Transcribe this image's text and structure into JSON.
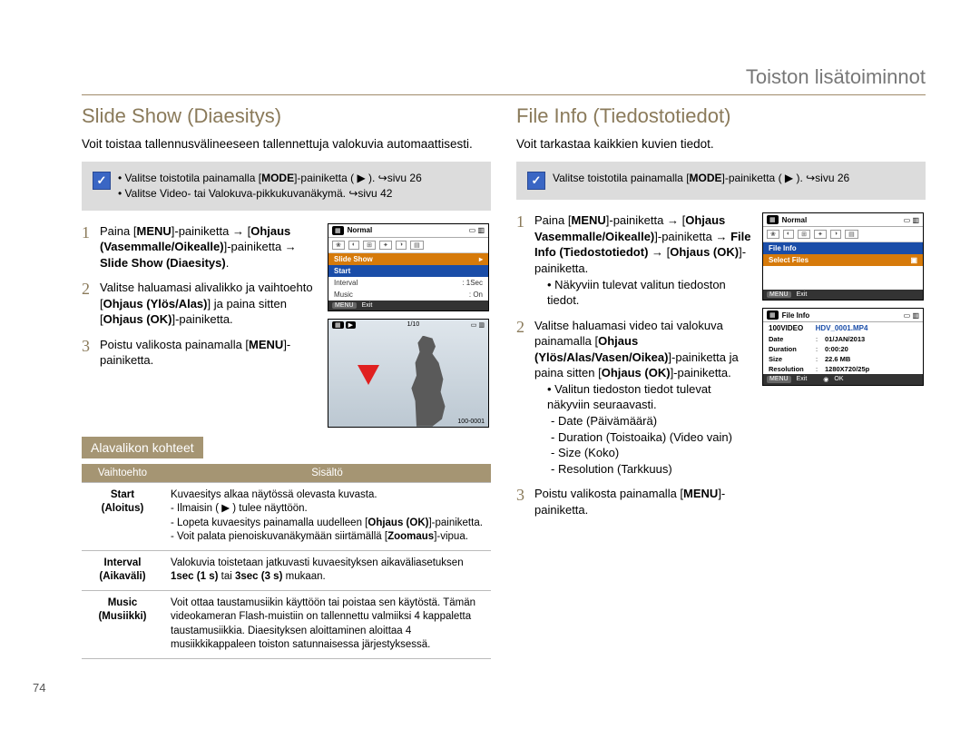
{
  "breadcrumb": "Toiston lisätoiminnot",
  "page_number": "74",
  "left": {
    "heading": "Slide Show (Diaesitys)",
    "intro": "Voit toistaa tallennusvälineeseen tallennettuja valokuvia automaattisesti.",
    "note": {
      "items": [
        "Valitse toistotila painamalla [MODE]-painiketta ( ▶ ). ↪sivu 26",
        "Valitse Video- tai Valokuva-pikkukuvanäkymä. ↪sivu 42"
      ]
    },
    "steps": [
      {
        "n": "1",
        "html": "Paina [<b>MENU</b>]-painiketta → [<b>Ohjaus (Vasemmalle/Oikealle)</b>]-painiketta → <b>Slide Show (Diaesitys)</b>."
      },
      {
        "n": "2",
        "html": "Valitse haluamasi alivalikko ja vaihtoehto [<b>Ohjaus (Ylös/Alas)</b>] ja paina sitten [<b>Ohjaus (OK)</b>]-painiketta."
      },
      {
        "n": "3",
        "html": "Poistu valikosta painamalla [<b>MENU</b>]-painiketta."
      }
    ],
    "lcd1": {
      "normal": "Normal",
      "menu_title": "Slide Show",
      "rows": [
        {
          "label": "Start",
          "val": ""
        },
        {
          "label": "Interval",
          "val": ": 1Sec"
        },
        {
          "label": "Music",
          "val": ": On"
        }
      ],
      "exit": "Exit"
    },
    "lcd2": {
      "counter": "1/10",
      "file": "100-0001"
    },
    "subhead": "Alavalikon kohteet",
    "table": {
      "head": [
        "Vaihtoehto",
        "Sisältö"
      ],
      "rows": [
        {
          "k": "Start\n(Aloitus)",
          "v": "Kuvaesitys alkaa näytössä olevasta kuvasta.\n-   Ilmaisin ( ▶ ) tulee näyttöön.\n-   Lopeta kuvaesitys painamalla uudelleen [Ohjaus (OK)]-painiketta.\n-   Voit palata pienoiskuvanäkymään siirtämällä [Zoomaus]-vipua.",
          "bold": [
            "Ohjaus (OK)",
            "Zoomaus"
          ]
        },
        {
          "k": "Interval\n(Aikaväli)",
          "v": "Valokuvia toistetaan jatkuvasti kuvaesityksen aikaväliasetuksen 1sec (1 s) tai 3sec (3 s) mukaan.",
          "bold": [
            "1sec (1 s)",
            "3sec (3 s)"
          ]
        },
        {
          "k": "Music\n(Musiikki)",
          "v": "Voit ottaa taustamusiikin käyttöön tai poistaa sen käytöstä. Tämän videokameran Flash-muistiin on tallennettu valmiiksi 4 kappaletta taustamusiikkia. Diaesityksen aloittaminen aloittaa 4 musiikkikappaleen toiston satunnaisessa järjestyksessä."
        }
      ]
    }
  },
  "right": {
    "heading": "File Info (Tiedostotiedot)",
    "intro": "Voit tarkastaa kaikkien kuvien tiedot.",
    "note": {
      "text": "Valitse toistotila painamalla [MODE]-painiketta ( ▶ ). ↪sivu 26"
    },
    "steps": [
      {
        "n": "1",
        "html": "Paina [<b>MENU</b>]-painiketta → [<b>Ohjaus Vasemmalle/Oikealle)</b>]-painiketta → <b>File Info (Tiedostotiedot)</b> → [<b>Ohjaus (OK)</b>]-painiketta.",
        "bullets": [
          "Näkyviin tulevat valitun tiedoston tiedot."
        ]
      },
      {
        "n": "2",
        "html": "Valitse haluamasi video tai valokuva painamalla [<b>Ohjaus (Ylös/Alas/Vasen/Oikea)</b>]-painiketta ja paina sitten [<b>Ohjaus (OK)</b>]-painiketta.",
        "bullets": [
          "Valitun tiedoston tiedot tulevat näkyviin seuraavasti."
        ],
        "dashes": [
          "Date (Päivämäärä)",
          "Duration (Toistoaika) (Video vain)",
          "Size (Koko)",
          "Resolution (Tarkkuus)"
        ]
      },
      {
        "n": "3",
        "html": "Poistu valikosta painamalla [<b>MENU</b>]-painiketta."
      }
    ],
    "lcd1": {
      "normal": "Normal",
      "active": "File Info",
      "hi": "Select Files",
      "exit": "Exit"
    },
    "lcd2": {
      "title": "File Info",
      "folder": "100VIDEO",
      "filename": "HDV_0001.MP4",
      "details": [
        {
          "k": "Date",
          "v": "01/JAN/2013"
        },
        {
          "k": "Duration",
          "v": "0:00:20"
        },
        {
          "k": "Size",
          "v": "22.6 MB"
        },
        {
          "k": "Resolution",
          "v": "1280X720/25p"
        }
      ],
      "exit": "Exit",
      "ok": "OK"
    }
  }
}
